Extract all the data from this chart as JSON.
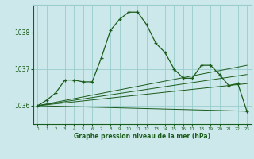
{
  "title": "Graphe pression niveau de la mer (hPa)",
  "bg_color": "#cce8ea",
  "grid_color": "#99cccc",
  "line_color": "#1a5c1a",
  "xlim": [
    -0.5,
    23.5
  ],
  "ylim": [
    1035.5,
    1038.75
  ],
  "yticks": [
    1036,
    1037,
    1038
  ],
  "xticks": [
    0,
    1,
    2,
    3,
    4,
    5,
    6,
    7,
    8,
    9,
    10,
    11,
    12,
    13,
    14,
    15,
    16,
    17,
    18,
    19,
    20,
    21,
    22,
    23
  ],
  "main_series": {
    "x": [
      0,
      1,
      2,
      3,
      4,
      5,
      6,
      7,
      8,
      9,
      10,
      11,
      12,
      13,
      14,
      15,
      16,
      17,
      18,
      19,
      20,
      21,
      22,
      23
    ],
    "y": [
      1036.0,
      1036.15,
      1036.35,
      1036.7,
      1036.7,
      1036.65,
      1036.65,
      1037.3,
      1038.05,
      1038.35,
      1038.55,
      1038.55,
      1038.2,
      1037.7,
      1037.45,
      1037.0,
      1036.75,
      1036.75,
      1037.1,
      1037.1,
      1036.85,
      1036.55,
      1036.6,
      1035.85
    ]
  },
  "envelope1": {
    "x": [
      0,
      23
    ],
    "y": [
      1036.0,
      1035.85
    ]
  },
  "envelope2": {
    "x": [
      0,
      23
    ],
    "y": [
      1036.0,
      1036.6
    ]
  },
  "envelope3": {
    "x": [
      0,
      23
    ],
    "y": [
      1036.0,
      1036.85
    ]
  },
  "envelope4": {
    "x": [
      0,
      23
    ],
    "y": [
      1036.0,
      1037.1
    ]
  }
}
